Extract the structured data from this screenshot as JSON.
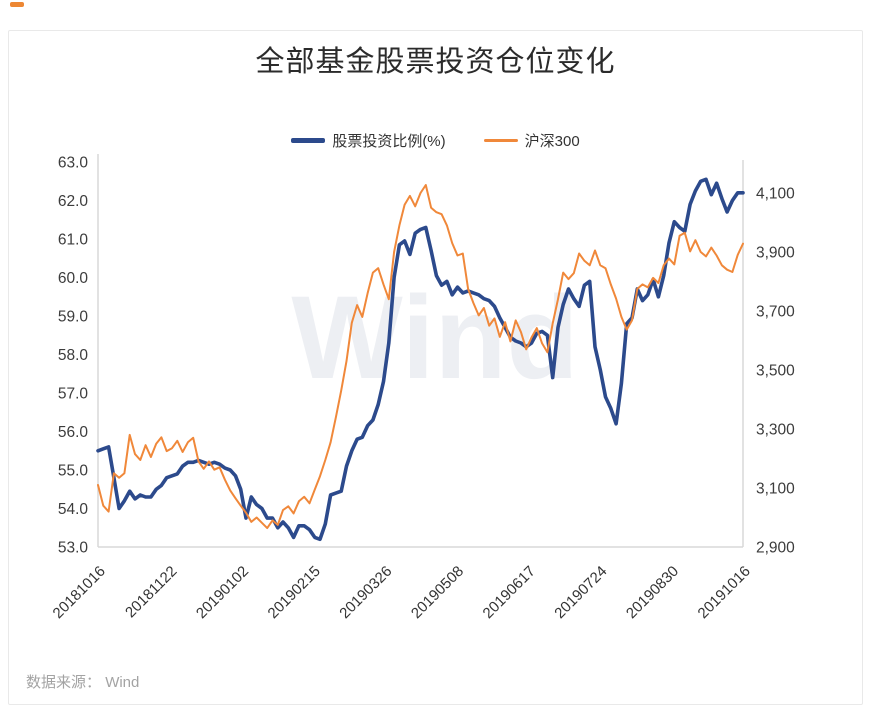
{
  "page": {
    "title": "全部基金股票投资仓位变化",
    "watermark": "Wind",
    "source_label": "数据来源：",
    "source_value": "Wind",
    "accent_color": "#ed8733"
  },
  "legend": [
    {
      "label": "股票投资比例(%)",
      "color": "#2c4a8c"
    },
    {
      "label": "沪深300",
      "color": "#f0883a"
    }
  ],
  "chart_data": {
    "type": "line",
    "title": "全部基金股票投资仓位变化",
    "grid": false,
    "legend_position": "top-center",
    "x_labels": [
      "20181016",
      "20181122",
      "20190102",
      "20190215",
      "20190326",
      "20190508",
      "20190617",
      "20190724",
      "20190830",
      "20191016"
    ],
    "left_axis": {
      "label": "股票投资比例(%)",
      "min": 53.0,
      "max": 63.0,
      "tick_labels": [
        "63.0",
        "62.0",
        "61.0",
        "60.0",
        "59.0",
        "58.0",
        "57.0",
        "56.0",
        "55.0",
        "54.0",
        "53.0"
      ],
      "tick_values": [
        63,
        62,
        61,
        60,
        59,
        58,
        57,
        56,
        55,
        54,
        53
      ]
    },
    "right_axis": {
      "label": "沪深300",
      "min": 2900,
      "plot_max": 4205,
      "tick_labels": [
        "4,100",
        "3,900",
        "3,700",
        "3,500",
        "3,300",
        "3,100",
        "2,900"
      ],
      "tick_values": [
        4100,
        3900,
        3700,
        3500,
        3300,
        3100,
        2900
      ]
    },
    "series": [
      {
        "name": "股票投资比例(%)",
        "axis": "left",
        "color": "#2c4a8c",
        "width": 3.6,
        "values": [
          55.5,
          55.55,
          55.6,
          54.8,
          54.0,
          54.2,
          54.45,
          54.25,
          54.35,
          54.3,
          54.3,
          54.5,
          54.6,
          54.8,
          54.85,
          54.9,
          55.1,
          55.2,
          55.2,
          55.25,
          55.2,
          55.15,
          55.2,
          55.15,
          55.05,
          55.0,
          54.85,
          54.5,
          53.75,
          54.3,
          54.1,
          54.0,
          53.75,
          53.75,
          53.5,
          53.65,
          53.5,
          53.25,
          53.55,
          53.55,
          53.45,
          53.25,
          53.2,
          53.6,
          54.35,
          54.4,
          54.45,
          55.1,
          55.5,
          55.8,
          55.85,
          56.15,
          56.3,
          56.7,
          57.3,
          58.3,
          60.0,
          60.85,
          60.95,
          60.6,
          61.15,
          61.25,
          61.3,
          60.7,
          60.05,
          59.8,
          59.9,
          59.55,
          59.75,
          59.6,
          59.65,
          59.6,
          59.55,
          59.45,
          59.4,
          59.25,
          58.95,
          58.7,
          58.45,
          58.35,
          58.3,
          58.2,
          58.3,
          58.55,
          58.6,
          58.5,
          57.4,
          58.7,
          59.3,
          59.7,
          59.45,
          59.25,
          59.8,
          59.9,
          58.2,
          57.6,
          56.9,
          56.6,
          56.2,
          57.25,
          58.8,
          58.95,
          59.7,
          59.4,
          59.55,
          59.95,
          59.5,
          60.05,
          60.9,
          61.45,
          61.3,
          61.2,
          61.9,
          62.25,
          62.5,
          62.55,
          62.15,
          62.45,
          62.05,
          61.7,
          62.0,
          62.2,
          62.2
        ]
      },
      {
        "name": "沪深300",
        "axis": "right",
        "color": "#f0883a",
        "width": 2,
        "values": [
          3110,
          3040,
          3020,
          3150,
          3135,
          3150,
          3280,
          3215,
          3195,
          3245,
          3205,
          3250,
          3272,
          3225,
          3235,
          3260,
          3222,
          3255,
          3270,
          3190,
          3165,
          3190,
          3162,
          3170,
          3128,
          3092,
          3065,
          3040,
          3016,
          2985,
          3000,
          2982,
          2964,
          2990,
          2975,
          3025,
          3038,
          3014,
          3055,
          3070,
          3048,
          3095,
          3140,
          3195,
          3255,
          3340,
          3430,
          3530,
          3660,
          3720,
          3680,
          3760,
          3830,
          3845,
          3790,
          3740,
          3900,
          3990,
          4060,
          4090,
          4055,
          4100,
          4127,
          4050,
          4035,
          4028,
          3990,
          3930,
          3888,
          3895,
          3775,
          3727,
          3685,
          3710,
          3650,
          3675,
          3612,
          3662,
          3597,
          3668,
          3628,
          3570,
          3610,
          3642,
          3590,
          3560,
          3658,
          3740,
          3830,
          3808,
          3828,
          3895,
          3870,
          3855,
          3905,
          3855,
          3845,
          3790,
          3742,
          3680,
          3637,
          3668,
          3775,
          3790,
          3780,
          3812,
          3795,
          3855,
          3878,
          3858,
          3955,
          3965,
          3902,
          3940,
          3900,
          3885,
          3915,
          3888,
          3855,
          3840,
          3832,
          3890,
          3928
        ]
      }
    ]
  }
}
